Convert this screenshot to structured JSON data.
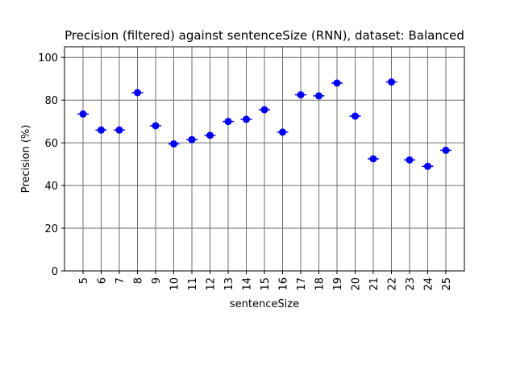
{
  "chart_data": {
    "type": "scatter",
    "title": "Precision (filtered) against sentenceSize (RNN), dataset: Balanced",
    "xlabel": "sentenceSize",
    "ylabel": "Precision (%)",
    "categories": [
      "5",
      "6",
      "7",
      "8",
      "9",
      "10",
      "11",
      "12",
      "13",
      "14",
      "15",
      "16",
      "17",
      "18",
      "19",
      "20",
      "21",
      "22",
      "23",
      "24",
      "25"
    ],
    "values": [
      73.5,
      66.0,
      66.0,
      83.5,
      68.0,
      59.5,
      61.5,
      63.5,
      70.0,
      71.0,
      75.5,
      65.0,
      82.5,
      82.0,
      88.0,
      72.5,
      52.5,
      88.5,
      52.0,
      49.0,
      56.5
    ],
    "ylim": [
      0,
      105
    ],
    "yticks": [
      0,
      20,
      40,
      60,
      80,
      100
    ],
    "grid": true,
    "color": "#0000ff",
    "gridColor": "#6e6e6e"
  }
}
